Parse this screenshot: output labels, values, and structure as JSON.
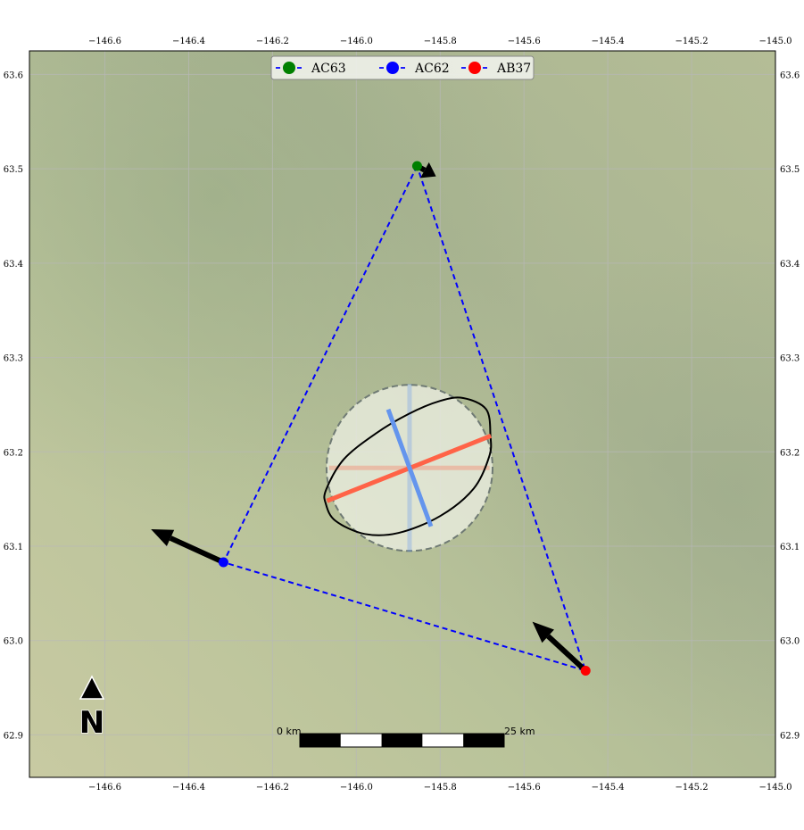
{
  "map": {
    "axes": {
      "lon_range": [
        -146.78,
        -145.0
      ],
      "lat_range": [
        62.855,
        63.625
      ],
      "lon_ticks": [
        -146.6,
        -146.4,
        -146.2,
        -146.0,
        -145.8,
        -145.6,
        -145.4,
        -145.2,
        -145.0
      ],
      "lon_tick_labels": [
        "−146.6",
        "−146.4",
        "−146.2",
        "−146.0",
        "−145.8",
        "−145.6",
        "−145.4",
        "−145.2",
        "−145.0"
      ],
      "lat_ticks": [
        62.9,
        63.0,
        63.1,
        63.2,
        63.3,
        63.4,
        63.5,
        63.6
      ],
      "lat_tick_labels": [
        "62.9",
        "63.0",
        "63.1",
        "63.2",
        "63.3",
        "63.4",
        "63.5",
        "63.6"
      ],
      "grid": true
    },
    "stations": [
      {
        "name": "AC63",
        "lon": -145.855,
        "lat": 63.503,
        "color": "#008000",
        "arrow_end": {
          "lon": -145.81,
          "lat": 63.492
        }
      },
      {
        "name": "AC62",
        "lon": -146.317,
        "lat": 63.083,
        "color": "#0000ff",
        "arrow_end": {
          "lon": -146.49,
          "lat": 63.118
        }
      },
      {
        "name": "AB37",
        "lon": -145.453,
        "lat": 62.968,
        "color": "#ff0000",
        "arrow_end": {
          "lon": -145.58,
          "lat": 63.02
        }
      }
    ],
    "triangle_color": "#0000ff",
    "error_ellipse": {
      "center": {
        "lon": -145.873,
        "lat": 63.183
      },
      "circle_radius_deg_lat": 0.088,
      "major_axis_color": "#ff6347",
      "minor_axis_color": "#6495ed",
      "major_axis": [
        {
          "lon": -146.07,
          "lat": 63.148
        },
        {
          "lon": -145.679,
          "lat": 63.217
        }
      ],
      "minor_axis": [
        {
          "lon": -145.924,
          "lat": 63.245
        },
        {
          "lon": -145.822,
          "lat": 63.121
        }
      ],
      "faint_horizontal": [
        {
          "lon": -146.065,
          "lat": 63.183
        },
        {
          "lon": -145.682,
          "lat": 63.183
        }
      ],
      "faint_vertical": [
        {
          "lon": -145.873,
          "lat": 63.272
        },
        {
          "lon": -145.873,
          "lat": 63.094
        }
      ],
      "ellipse_points": [
        {
          "lon": -145.68,
          "lat": 63.217
        },
        {
          "lon": -145.69,
          "lat": 63.245
        },
        {
          "lon": -145.745,
          "lat": 63.257
        },
        {
          "lon": -145.8,
          "lat": 63.254
        },
        {
          "lon": -145.876,
          "lat": 63.24
        },
        {
          "lon": -145.955,
          "lat": 63.219
        },
        {
          "lon": -146.03,
          "lat": 63.192
        },
        {
          "lon": -146.072,
          "lat": 63.16
        },
        {
          "lon": -146.073,
          "lat": 63.145
        },
        {
          "lon": -146.05,
          "lat": 63.127
        },
        {
          "lon": -145.98,
          "lat": 63.113
        },
        {
          "lon": -145.9,
          "lat": 63.114
        },
        {
          "lon": -145.8,
          "lat": 63.132
        },
        {
          "lon": -145.72,
          "lat": 63.161
        },
        {
          "lon": -145.683,
          "lat": 63.195
        }
      ]
    },
    "legend": {
      "items": [
        {
          "label": "AC63",
          "color": "#008000"
        },
        {
          "label": "AC62",
          "color": "#0000ff"
        },
        {
          "label": "AB37",
          "color": "#ff0000"
        }
      ]
    },
    "scale_bar": {
      "start_label": "0 km",
      "end_label": "25 km",
      "segments": 5
    },
    "north_arrow": {
      "label": "N"
    }
  }
}
